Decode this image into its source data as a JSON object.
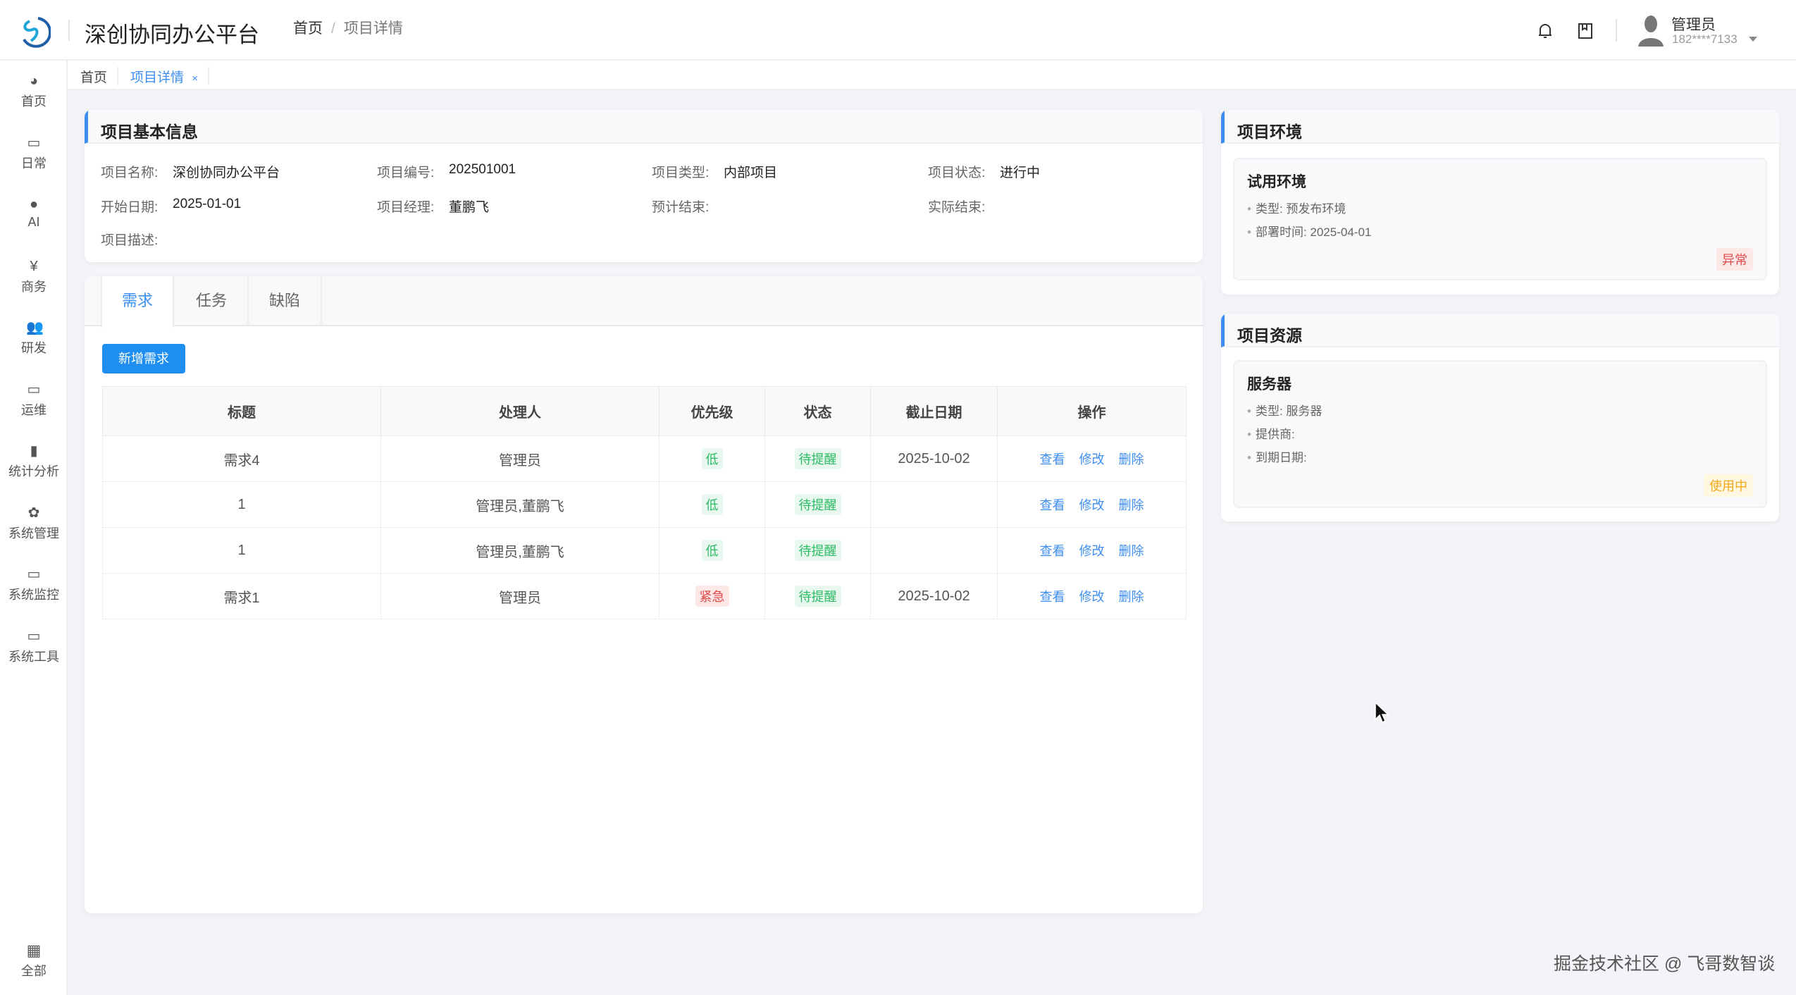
{
  "header": {
    "app_title": "深创协同办公平台",
    "breadcrumb": [
      "首页",
      "项目详情"
    ],
    "user_name": "管理员",
    "user_phone": "182****7133"
  },
  "sidebar": {
    "items": [
      {
        "label": "首页",
        "icon": "dashboard-icon"
      },
      {
        "label": "日常",
        "icon": "calendar-icon"
      },
      {
        "label": "AI",
        "icon": "globe-icon"
      },
      {
        "label": "商务",
        "icon": "yen-icon"
      },
      {
        "label": "研发",
        "icon": "users-icon"
      },
      {
        "label": "运维",
        "icon": "monitor-icon"
      },
      {
        "label": "统计分析",
        "icon": "bar-chart-icon"
      },
      {
        "label": "系统管理",
        "icon": "gear-icon"
      },
      {
        "label": "系统监控",
        "icon": "monitor-icon"
      },
      {
        "label": "系统工具",
        "icon": "toolbox-icon"
      }
    ],
    "bottom": {
      "label": "全部",
      "icon": "grid-icon"
    }
  },
  "tags": [
    {
      "label": "首页"
    },
    {
      "label": "项目详情",
      "close": "×"
    }
  ],
  "basic": {
    "title": "项目基本信息",
    "fields": [
      {
        "label": "项目名称:",
        "value": "深创协同办公平台"
      },
      {
        "label": "项目编号:",
        "value": "202501001"
      },
      {
        "label": "项目类型:",
        "value": "内部项目"
      },
      {
        "label": "项目状态:",
        "value": "进行中"
      },
      {
        "label": "开始日期:",
        "value": "2025-01-01"
      },
      {
        "label": "项目经理:",
        "value": "董鹏飞"
      },
      {
        "label": "预计结束:",
        "value": ""
      },
      {
        "label": "实际结束:",
        "value": ""
      },
      {
        "label": "项目描述:",
        "value": ""
      }
    ]
  },
  "tabs": [
    "需求",
    "任务",
    "缺陷"
  ],
  "add_button": "新增需求",
  "table": {
    "headers": [
      "标题",
      "处理人",
      "优先级",
      "状态",
      "截止日期",
      "操作"
    ],
    "rows": [
      {
        "title": "需求4",
        "assignee": "管理员",
        "priority": "低",
        "priority_color": "green",
        "status": "待提醒",
        "due": "2025-10-02"
      },
      {
        "title": "1",
        "assignee": "管理员,董鹏飞",
        "priority": "低",
        "priority_color": "green",
        "status": "待提醒",
        "due": ""
      },
      {
        "title": "1",
        "assignee": "管理员,董鹏飞",
        "priority": "低",
        "priority_color": "green",
        "status": "待提醒",
        "due": ""
      },
      {
        "title": "需求1",
        "assignee": "管理员",
        "priority": "紧急",
        "priority_color": "red",
        "status": "待提醒",
        "due": "2025-10-02"
      }
    ],
    "actions": [
      "查看",
      "修改",
      "删除"
    ]
  },
  "env": {
    "title": "项目环境",
    "item": {
      "name": "试用环境",
      "lines": [
        "类型: 预发布环境",
        "部署时间: 2025-04-01"
      ],
      "badge": "异常"
    }
  },
  "res": {
    "title": "项目资源",
    "item": {
      "name": "服务器",
      "lines": [
        "类型: 服务器",
        "提供商:",
        "到期日期:"
      ],
      "badge": "使用中"
    }
  },
  "watermark": "掘金技术社区 @ 飞哥数智谈",
  "colors": {
    "accent": "#1f8ef1",
    "green": "#2dba65",
    "red": "#e04a4a",
    "orange": "#f2a91c"
  }
}
